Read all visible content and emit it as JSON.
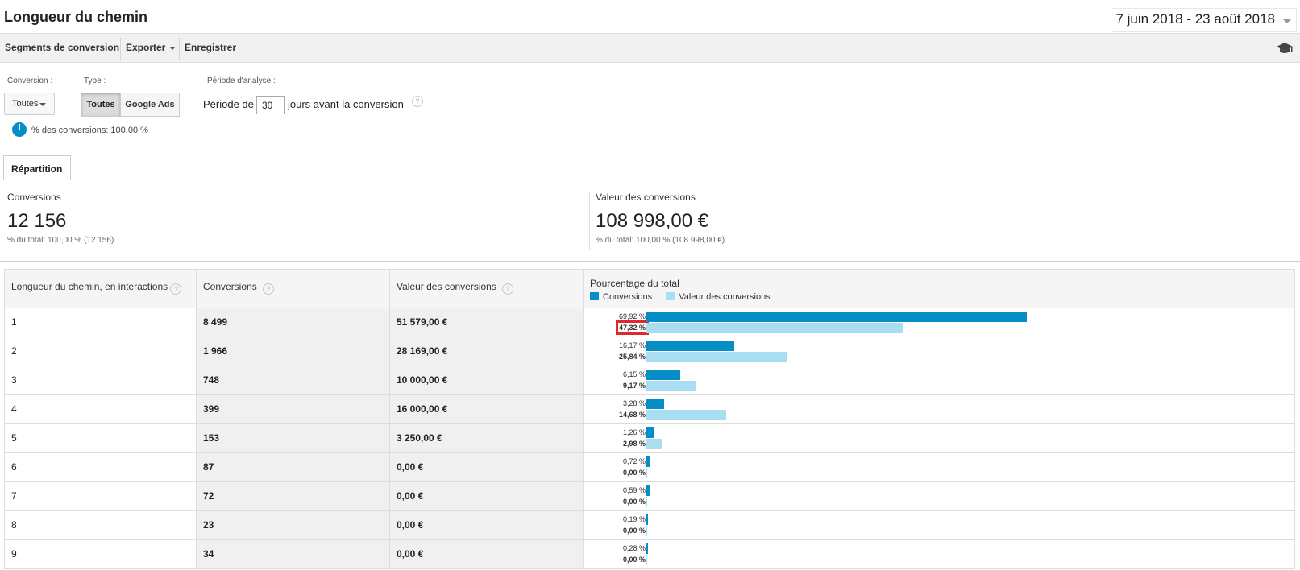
{
  "header": {
    "title": "Longueur du chemin",
    "date_range": "7 juin 2018 - 23 août 2018"
  },
  "toolbar": {
    "segments": "Segments de conversion",
    "export": "Exporter",
    "save": "Enregistrer",
    "cap_icon": "graduation-cap-icon"
  },
  "filters": {
    "conversion_label": "Conversion :",
    "conversion_value": "Toutes",
    "type_label": "Type :",
    "type_options": [
      "Toutes",
      "Google Ads"
    ],
    "type_selected": "Toutes",
    "period_label": "Période d'analyse :",
    "period_prefix": "Période de",
    "period_value": "30",
    "period_suffix": "jours avant la conversion",
    "help": "?",
    "conversions_pct": "% des conversions: 100,00 %"
  },
  "tabs": [
    {
      "label": "Répartition",
      "active": true
    }
  ],
  "metrics": [
    {
      "label": "Conversions",
      "value": "12 156",
      "sub": "% du total: 100,00 % (12 156)"
    },
    {
      "label": "Valeur des conversions",
      "value": "108 998,00 €",
      "sub": "% du total: 100,00 % (108 998,00 €)"
    }
  ],
  "table": {
    "headers": [
      "Longueur du chemin, en interactions",
      "Conversions",
      "Valeur des conversions",
      "Pourcentage du total"
    ],
    "legend": [
      "Conversions",
      "Valeur des conversions"
    ],
    "colors": {
      "conversions": "#058dc7",
      "value": "#a9def2",
      "highlight": "#e3262b"
    },
    "rows": [
      {
        "length": "1",
        "conversions": "8 499",
        "value": "51 579,00 €",
        "pct_conv": "69,92 %",
        "pct_value": "47,32 %",
        "conv_share": 69.92,
        "value_share": 47.32,
        "highlighted": true
      },
      {
        "length": "2",
        "conversions": "1 966",
        "value": "28 169,00 €",
        "pct_conv": "16,17 %",
        "pct_value": "25,84 %",
        "conv_share": 16.17,
        "value_share": 25.84
      },
      {
        "length": "3",
        "conversions": "748",
        "value": "10 000,00 €",
        "pct_conv": "6,15 %",
        "pct_value": "9,17 %",
        "conv_share": 6.15,
        "value_share": 9.17
      },
      {
        "length": "4",
        "conversions": "399",
        "value": "16 000,00 €",
        "pct_conv": "3,28 %",
        "pct_value": "14,68 %",
        "conv_share": 3.28,
        "value_share": 14.68
      },
      {
        "length": "5",
        "conversions": "153",
        "value": "3 250,00 €",
        "pct_conv": "1,26 %",
        "pct_value": "2,98 %",
        "conv_share": 1.26,
        "value_share": 2.98
      },
      {
        "length": "6",
        "conversions": "87",
        "value": "0,00 €",
        "pct_conv": "0,72 %",
        "pct_value": "0,00 %",
        "conv_share": 0.72,
        "value_share": 0
      },
      {
        "length": "7",
        "conversions": "72",
        "value": "0,00 €",
        "pct_conv": "0,59 %",
        "pct_value": "0,00 %",
        "conv_share": 0.59,
        "value_share": 0
      },
      {
        "length": "8",
        "conversions": "23",
        "value": "0,00 €",
        "pct_conv": "0,19 %",
        "pct_value": "0,00 %",
        "conv_share": 0.19,
        "value_share": 0
      },
      {
        "length": "9",
        "conversions": "34",
        "value": "0,00 €",
        "pct_conv": "0,28 %",
        "pct_value": "0,00 %",
        "conv_share": 0.28,
        "value_share": 0
      }
    ]
  }
}
